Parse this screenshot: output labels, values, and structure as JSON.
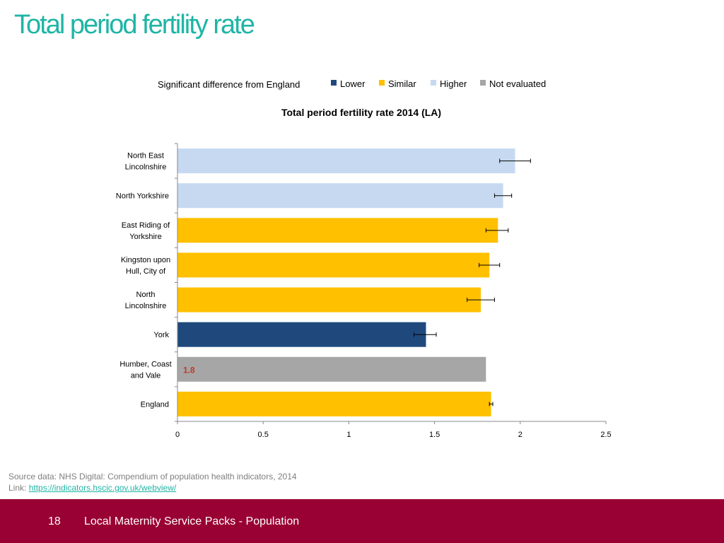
{
  "slide": {
    "title": "Total period fertility rate"
  },
  "colors": {
    "title": "#1fb5a5",
    "lower": "#1f497d",
    "similar": "#ffc000",
    "higher": "#c6d9f1",
    "not_evaluated": "#a6a6a6",
    "footer_bg": "#990033",
    "annotation": "#c0392b"
  },
  "chart_data": {
    "type": "bar",
    "orientation": "horizontal",
    "title": "Total period fertility rate 2014 (LA)",
    "legend": {
      "title": "Significant difference from England",
      "entries": [
        {
          "key": "lower",
          "label": "Lower"
        },
        {
          "key": "similar",
          "label": "Similar"
        },
        {
          "key": "higher",
          "label": "Higher"
        },
        {
          "key": "not_evaluated",
          "label": "Not evaluated"
        }
      ],
      "position": "top"
    },
    "categories": [
      [
        "North East",
        "Lincolnshire"
      ],
      [
        "North Yorkshire"
      ],
      [
        "East Riding of",
        "Yorkshire"
      ],
      [
        "Kingston upon",
        "Hull, City of"
      ],
      [
        "North",
        "Lincolnshire"
      ],
      [
        "York"
      ],
      [
        "Humber, Coast",
        "and Vale"
      ],
      [
        "England"
      ]
    ],
    "values": [
      1.97,
      1.9,
      1.87,
      1.82,
      1.77,
      1.45,
      1.8,
      1.83
    ],
    "ci_low": [
      1.88,
      1.85,
      1.8,
      1.76,
      1.69,
      1.38,
      null,
      1.82
    ],
    "ci_high": [
      2.06,
      1.95,
      1.93,
      1.88,
      1.85,
      1.51,
      null,
      1.84
    ],
    "significance": [
      "higher",
      "higher",
      "similar",
      "similar",
      "similar",
      "lower",
      "not_evaluated",
      "similar"
    ],
    "annotation": {
      "index": 6,
      "text": "1.8"
    },
    "xlim": [
      0,
      2.5
    ],
    "xticks": [
      0,
      0.5,
      1,
      1.5,
      2,
      2.5
    ],
    "xtick_labels": [
      "0",
      "0.5",
      "1",
      "1.5",
      "2",
      "2.5"
    ],
    "xlabel": "",
    "ylabel": "",
    "grid": false
  },
  "source": {
    "line1": "Source data: NHS Digital: Compendium of population health indicators, 2014",
    "link_prefix": "Link: ",
    "link_text": "https://indicators.hscic.gov.uk/webview/"
  },
  "footer": {
    "page_number": "18",
    "text": "Local Maternity Service Packs - Population"
  }
}
